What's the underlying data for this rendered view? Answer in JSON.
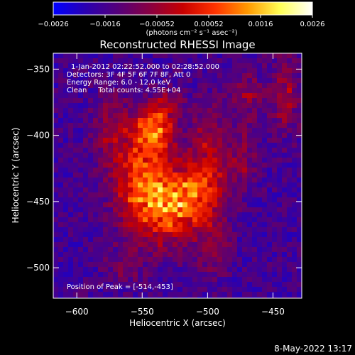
{
  "chart_data": {
    "type": "heatmap",
    "title": "Reconstructed RHESSI Image",
    "xlabel": "Heliocentric X (arcsec)",
    "ylabel": "Heliocentric Y (arcsec)",
    "xlim": [
      -618,
      -428
    ],
    "ylim": [
      -523,
      -338
    ],
    "xticks": [
      -600,
      -550,
      -500,
      -450
    ],
    "yticks": [
      -350,
      -400,
      -450,
      -500
    ],
    "xtick_labels": [
      "−600",
      "−550",
      "−500",
      "−450"
    ],
    "ytick_labels": [
      "−350",
      "−400",
      "−450",
      "−500"
    ],
    "colorbar": {
      "range": [
        -0.0026,
        0.0026
      ],
      "tick_labels": [
        "−0.0026",
        "−0.0016",
        "−0.00052",
        "0.00052",
        "0.0016",
        "0.0026"
      ],
      "units_label": "(photons cm⁻² s⁻¹ asec⁻²)",
      "colormap": [
        "#0000ff",
        "#2a00b0",
        "#55007a",
        "#8a0040",
        "#c80000",
        "#ff3300",
        "#ff9900",
        "#ffff55",
        "#ffffff"
      ]
    },
    "annotations": [
      "1-Jan-2012 02:22:52.000 to 02:28:52.000",
      "Detectors: 3F 4F 5F 6F 7F 8F, Att 0",
      "Energy Range: 6.0 - 12.0 keV",
      "Clean     Total counts: 4.55E+04",
      "Position of Peak = [-514,-453]"
    ],
    "sources": [
      {
        "x": -535,
        "y": -450,
        "sx": 20,
        "sy": 22,
        "amp": 0.0026
      },
      {
        "x": -540,
        "y": -395,
        "sx": 10,
        "sy": 12,
        "amp": 0.0024
      },
      {
        "x": -512,
        "y": -448,
        "sx": 14,
        "sy": 14,
        "amp": 0.001
      },
      {
        "x": -555,
        "y": -420,
        "sx": 14,
        "sy": 26,
        "amp": 0.0012
      },
      {
        "x": -500,
        "y": -420,
        "sx": 10,
        "sy": 30,
        "amp": 0.0012
      },
      {
        "x": -575,
        "y": -395,
        "sx": 10,
        "sy": 20,
        "amp": 0.0008
      },
      {
        "x": -470,
        "y": -370,
        "sx": 10,
        "sy": 14,
        "amp": 0.0009
      },
      {
        "x": -440,
        "y": -370,
        "sx": 8,
        "sy": 22,
        "amp": 0.0011
      },
      {
        "x": -475,
        "y": -420,
        "sx": 9,
        "sy": 18,
        "amp": 0.0009
      },
      {
        "x": -495,
        "y": -485,
        "sx": 9,
        "sy": 15,
        "amp": 0.0008
      },
      {
        "x": -565,
        "y": -500,
        "sx": 10,
        "sy": 10,
        "amp": 0.0005
      },
      {
        "x": -530,
        "y": -375,
        "sx": 8,
        "sy": 8,
        "amp": 0.0008
      }
    ],
    "background": -0.0016
  },
  "footer": {
    "timestamp": "8-May-2022 13:17"
  }
}
